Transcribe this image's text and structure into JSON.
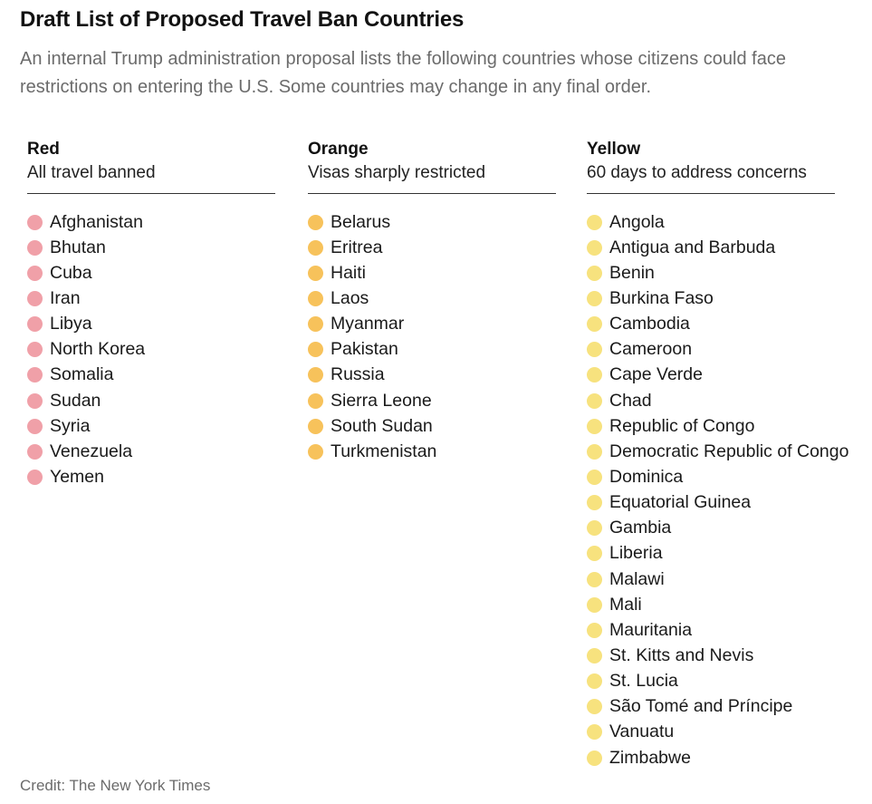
{
  "title": "Draft List of Proposed Travel Ban Countries",
  "subtitle": "An internal Trump administration proposal lists the following countries whose citizens could face restrictions on entering the U.S. Some countries may change in any final order.",
  "credit": "Credit: The New York Times",
  "columns": [
    {
      "name": "Red",
      "description": "All travel banned",
      "color": "#f0a0a8",
      "countries": [
        "Afghanistan",
        "Bhutan",
        "Cuba",
        "Iran",
        "Libya",
        "North Korea",
        "Somalia",
        "Sudan",
        "Syria",
        "Venezuela",
        "Yemen"
      ]
    },
    {
      "name": "Orange",
      "description": "Visas sharply restricted",
      "color": "#f7c25b",
      "countries": [
        "Belarus",
        "Eritrea",
        "Haiti",
        "Laos",
        "Myanmar",
        "Pakistan",
        "Russia",
        "Sierra Leone",
        "South Sudan",
        "Turkmenistan"
      ]
    },
    {
      "name": "Yellow",
      "description": "60 days to address concerns",
      "color": "#f7e27e",
      "countries": [
        "Angola",
        "Antigua and Barbuda",
        "Benin",
        "Burkina Faso",
        "Cambodia",
        "Cameroon",
        "Cape Verde",
        "Chad",
        "Republic of Congo",
        "Democratic Republic of Congo",
        "Dominica",
        "Equatorial Guinea",
        "Gambia",
        "Liberia",
        "Malawi",
        "Mali",
        "Mauritania",
        "St. Kitts and Nevis",
        "St. Lucia",
        "São Tomé and Príncipe",
        "Vanuatu",
        "Zimbabwe"
      ]
    }
  ]
}
